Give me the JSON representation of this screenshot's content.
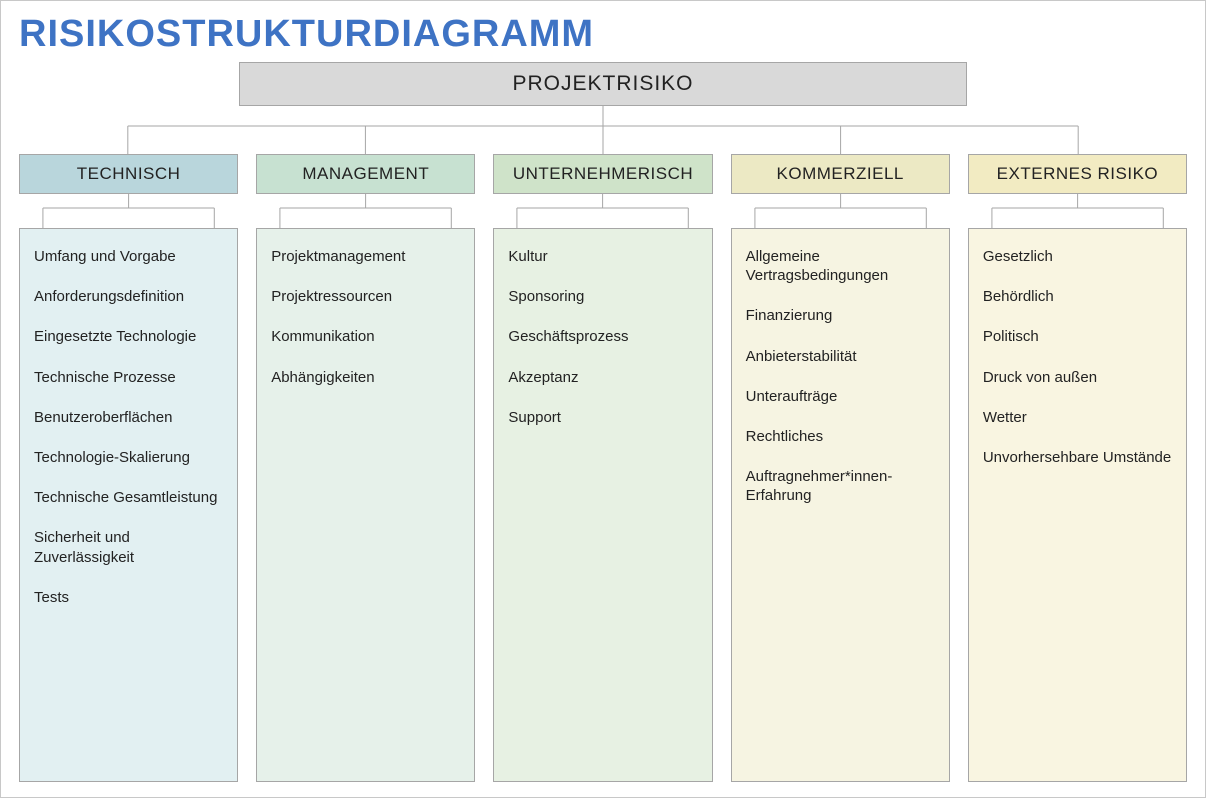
{
  "title": "RISIKOSTRUKTURDIAGRAMM",
  "title_color": "#3e73c4",
  "root": {
    "label": "PROJEKTRISIKO",
    "bg": "#d9d9d9",
    "border": "#a6a6a6"
  },
  "connector_color": "#a6a6a6",
  "frame_border": "#c8c8c8",
  "categories": [
    {
      "label": "TECHNISCH",
      "header_bg": "#b9d6dc",
      "body_bg": "#e2f0f2",
      "items": [
        "Umfang und Vorgabe",
        "Anforderungsdefinition",
        "Eingesetzte Technologie",
        "Technische Prozesse",
        "Benutzeroberflächen",
        "Technologie-Skalierung",
        "Technische Gesamtleistung",
        "Sicherheit und Zuverlässigkeit",
        "Tests"
      ]
    },
    {
      "label": "MANAGEMENT",
      "header_bg": "#c7e1d1",
      "body_bg": "#e6f1ea",
      "items": [
        "Projektmanagement",
        "Projektressourcen",
        "Kommunikation",
        "Abhängigkeiten"
      ]
    },
    {
      "label": "UNTERNEHMERISCH",
      "header_bg": "#cfe3c9",
      "body_bg": "#e7f1e3",
      "items": [
        "Kultur",
        "Sponsoring",
        "Geschäftsprozess",
        "Akzeptanz",
        "Support"
      ]
    },
    {
      "label": "KOMMERZIELL",
      "header_bg": "#ece9c4",
      "body_bg": "#f6f4e2",
      "items": [
        "Allgemeine Vertragsbedingungen",
        "Finanzierung",
        "Anbieterstabilität",
        "Unteraufträge",
        "Rechtliches",
        "Auftragnehmer*innen-Erfahrung"
      ]
    },
    {
      "label": "EXTERNES RISIKO",
      "header_bg": "#f2ebc2",
      "body_bg": "#f9f5e1",
      "items": [
        "Gesetzlich",
        "Behördlich",
        "Politisch",
        "Druck von außen",
        "Wetter",
        "Unvorhersehbare Umstände"
      ]
    }
  ]
}
